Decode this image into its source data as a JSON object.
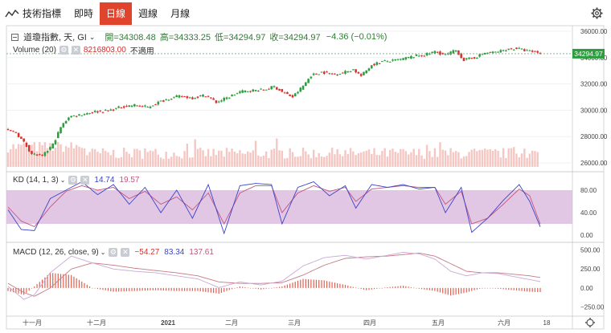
{
  "toolbar": {
    "tool_label": "技術指標",
    "tabs": [
      {
        "label": "即時",
        "active": false
      },
      {
        "label": "日線",
        "active": true
      },
      {
        "label": "週線",
        "active": false
      },
      {
        "label": "月線",
        "active": false
      }
    ]
  },
  "header": {
    "symbol": "道瓊指數, 天, GI",
    "open": "開=34308.48",
    "high": "高=34333.25",
    "low": "低=34294.97",
    "close": "收=34294.97",
    "change": "−4.36 (−0.01%)"
  },
  "volume_legend": {
    "label": "Volume (20)",
    "value": "8216803.00",
    "na": "不適用"
  },
  "kd_legend": {
    "label": "KD (14, 1, 3)",
    "k": "14.74",
    "d": "19.57"
  },
  "macd_legend": {
    "label": "MACD (12, 26, close, 9)",
    "hist": "−54.27",
    "macd": "83.34",
    "signal": "137.61"
  },
  "colors": {
    "up": "#2e9d3f",
    "down": "#d8322e",
    "volume": "#f4c7c3",
    "kd_band": "#d8b4dc",
    "k_line": "#3c44c9",
    "d_line": "#c2557e",
    "macd_line": "#c9a9d6",
    "signal_line": "#c77a86",
    "hist": "#e06050",
    "accent": "#e0442c"
  },
  "chart_data": [
    {
      "type": "candlestick",
      "title": "道瓊指數, 天, GI",
      "x_ticks": [
        "十一月",
        "十二月",
        "2021",
        "二月",
        "三月",
        "四月",
        "五月",
        "六月",
        "18"
      ],
      "y_ticks": [
        26000,
        28000,
        30000,
        32000,
        34000,
        36000
      ],
      "y_tick_labels": [
        "26000.00",
        "28000.00",
        "30000.00",
        "32000.00",
        "34000.00",
        "36000.00"
      ],
      "ylim": [
        25700,
        36300
      ],
      "last_price_label": "34294.97",
      "last_price": 34294.97,
      "anchors": [
        [
          0,
          28450
        ],
        [
          3,
          28300
        ],
        [
          6,
          27550
        ],
        [
          9,
          26700
        ],
        [
          13,
          26500
        ],
        [
          17,
          27400
        ],
        [
          20,
          28700
        ],
        [
          23,
          29500
        ],
        [
          28,
          29700
        ],
        [
          33,
          29900
        ],
        [
          38,
          29960
        ],
        [
          44,
          30300
        ],
        [
          48,
          30390
        ],
        [
          53,
          30230
        ],
        [
          57,
          30600
        ],
        [
          61,
          30900
        ],
        [
          65,
          31060
        ],
        [
          70,
          30950
        ],
        [
          75,
          31150
        ],
        [
          79,
          30600
        ],
        [
          83,
          30930
        ],
        [
          88,
          31400
        ],
        [
          92,
          31500
        ],
        [
          97,
          31540
        ],
        [
          101,
          31800
        ],
        [
          104,
          31400
        ],
        [
          108,
          31000
        ],
        [
          112,
          31850
        ],
        [
          115,
          32650
        ],
        [
          119,
          32900
        ],
        [
          123,
          32750
        ],
        [
          127,
          32850
        ],
        [
          131,
          33100
        ],
        [
          134,
          32600
        ],
        [
          138,
          33450
        ],
        [
          142,
          33700
        ],
        [
          146,
          33750
        ],
        [
          150,
          33900
        ],
        [
          154,
          34100
        ],
        [
          158,
          34200
        ],
        [
          162,
          34450
        ],
        [
          166,
          34200
        ],
        [
          170,
          34550
        ],
        [
          173,
          33800
        ],
        [
          177,
          34000
        ],
        [
          181,
          34350
        ],
        [
          185,
          34400
        ],
        [
          189,
          34600
        ],
        [
          193,
          34700
        ],
        [
          197,
          34500
        ],
        [
          201,
          34400
        ],
        [
          202,
          34294.97
        ]
      ]
    },
    {
      "type": "bar",
      "title": "Volume (20)",
      "latest_value": 8216803.0,
      "bar_count": 202
    },
    {
      "type": "line",
      "title": "KD (14, 1, 3)",
      "y_ticks": [
        0,
        40,
        80
      ],
      "y_tick_labels": [
        "0.00",
        "40.00",
        "80.00"
      ],
      "ylim": [
        -10,
        110
      ],
      "band": [
        20,
        80
      ],
      "latest": {
        "k": 14.74,
        "d": 19.57
      },
      "k_anchors": [
        [
          0,
          45
        ],
        [
          5,
          10
        ],
        [
          10,
          8
        ],
        [
          16,
          65
        ],
        [
          22,
          80
        ],
        [
          28,
          95
        ],
        [
          34,
          72
        ],
        [
          40,
          90
        ],
        [
          46,
          55
        ],
        [
          52,
          85
        ],
        [
          58,
          40
        ],
        [
          64,
          80
        ],
        [
          70,
          30
        ],
        [
          76,
          90
        ],
        [
          82,
          3
        ],
        [
          88,
          88
        ],
        [
          94,
          92
        ],
        [
          100,
          90
        ],
        [
          104,
          20
        ],
        [
          110,
          85
        ],
        [
          116,
          95
        ],
        [
          122,
          70
        ],
        [
          128,
          88
        ],
        [
          132,
          48
        ],
        [
          138,
          90
        ],
        [
          144,
          85
        ],
        [
          150,
          90
        ],
        [
          156,
          82
        ],
        [
          162,
          85
        ],
        [
          166,
          40
        ],
        [
          172,
          85
        ],
        [
          176,
          5
        ],
        [
          182,
          30
        ],
        [
          188,
          62
        ],
        [
          194,
          90
        ],
        [
          198,
          60
        ],
        [
          202,
          14.74
        ]
      ],
      "d_anchors": [
        [
          0,
          50
        ],
        [
          5,
          25
        ],
        [
          10,
          15
        ],
        [
          16,
          50
        ],
        [
          22,
          78
        ],
        [
          28,
          88
        ],
        [
          34,
          80
        ],
        [
          40,
          85
        ],
        [
          46,
          65
        ],
        [
          52,
          78
        ],
        [
          58,
          55
        ],
        [
          64,
          68
        ],
        [
          70,
          45
        ],
        [
          76,
          75
        ],
        [
          82,
          20
        ],
        [
          88,
          75
        ],
        [
          94,
          88
        ],
        [
          100,
          88
        ],
        [
          104,
          40
        ],
        [
          110,
          75
        ],
        [
          116,
          88
        ],
        [
          122,
          78
        ],
        [
          128,
          85
        ],
        [
          132,
          60
        ],
        [
          138,
          82
        ],
        [
          144,
          85
        ],
        [
          150,
          88
        ],
        [
          156,
          85
        ],
        [
          162,
          85
        ],
        [
          166,
          55
        ],
        [
          172,
          78
        ],
        [
          176,
          20
        ],
        [
          182,
          30
        ],
        [
          188,
          55
        ],
        [
          194,
          82
        ],
        [
          198,
          70
        ],
        [
          202,
          19.57
        ]
      ]
    },
    {
      "type": "line",
      "title": "MACD (12, 26, close, 9)",
      "y_ticks": [
        -250,
        0,
        250,
        500
      ],
      "y_tick_labels": [
        "−250.00",
        "0.00",
        "250.00",
        "500.00"
      ],
      "ylim": [
        -350,
        580
      ],
      "latest": {
        "histogram": -54.27,
        "macd": 83.34,
        "signal": 137.61
      },
      "macd_anchors": [
        [
          0,
          20
        ],
        [
          6,
          -150
        ],
        [
          10,
          -90
        ],
        [
          16,
          200
        ],
        [
          24,
          420
        ],
        [
          32,
          330
        ],
        [
          40,
          250
        ],
        [
          48,
          220
        ],
        [
          56,
          200
        ],
        [
          64,
          160
        ],
        [
          72,
          120
        ],
        [
          80,
          5
        ],
        [
          88,
          80
        ],
        [
          96,
          40
        ],
        [
          104,
          90
        ],
        [
          112,
          290
        ],
        [
          120,
          400
        ],
        [
          128,
          430
        ],
        [
          136,
          380
        ],
        [
          144,
          430
        ],
        [
          150,
          470
        ],
        [
          156,
          450
        ],
        [
          162,
          380
        ],
        [
          168,
          220
        ],
        [
          174,
          160
        ],
        [
          180,
          200
        ],
        [
          186,
          190
        ],
        [
          192,
          150
        ],
        [
          198,
          110
        ],
        [
          202,
          83.34
        ]
      ],
      "signal_anchors": [
        [
          0,
          60
        ],
        [
          6,
          -60
        ],
        [
          10,
          -110
        ],
        [
          16,
          0
        ],
        [
          24,
          250
        ],
        [
          32,
          330
        ],
        [
          40,
          300
        ],
        [
          48,
          260
        ],
        [
          56,
          230
        ],
        [
          64,
          200
        ],
        [
          72,
          160
        ],
        [
          80,
          80
        ],
        [
          88,
          60
        ],
        [
          96,
          60
        ],
        [
          104,
          70
        ],
        [
          112,
          170
        ],
        [
          120,
          300
        ],
        [
          128,
          390
        ],
        [
          136,
          410
        ],
        [
          144,
          420
        ],
        [
          150,
          440
        ],
        [
          156,
          460
        ],
        [
          162,
          420
        ],
        [
          168,
          320
        ],
        [
          174,
          220
        ],
        [
          180,
          200
        ],
        [
          186,
          200
        ],
        [
          192,
          180
        ],
        [
          198,
          160
        ],
        [
          202,
          137.61
        ]
      ]
    }
  ]
}
